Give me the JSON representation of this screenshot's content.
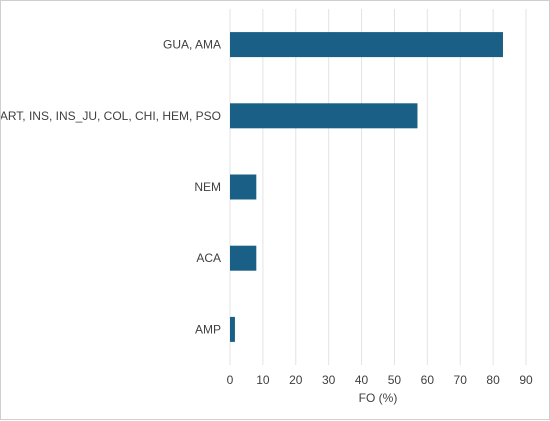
{
  "chart_data": {
    "type": "bar",
    "orientation": "horizontal",
    "categories": [
      "GUA, AMA",
      "ART, INS, INS_JU, COL, CHI, HEM, PSO",
      "NEM",
      "ACA",
      "AMP"
    ],
    "values": [
      83,
      57,
      8,
      8,
      1.5
    ],
    "xlabel": "FO (%)",
    "ylabel": "",
    "xlim": [
      0,
      90
    ],
    "xticks": [
      0,
      10,
      20,
      30,
      40,
      50,
      60,
      70,
      80,
      90
    ],
    "grid": "vertical",
    "bar_color": "#1a5f85",
    "grid_color": "#e3e3e3"
  }
}
